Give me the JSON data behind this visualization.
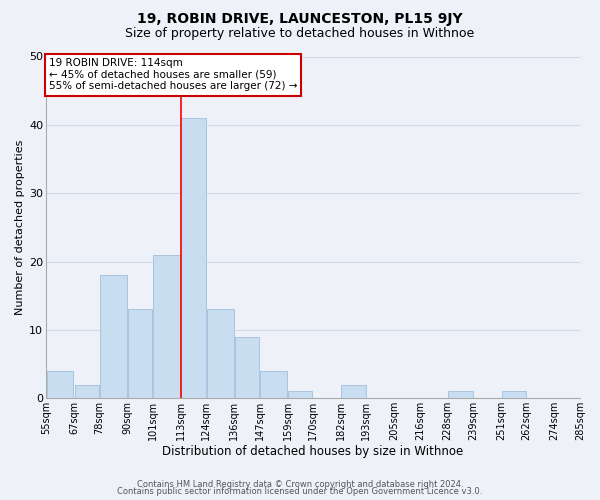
{
  "title": "19, ROBIN DRIVE, LAUNCESTON, PL15 9JY",
  "subtitle": "Size of property relative to detached houses in Withnoe",
  "xlabel": "Distribution of detached houses by size in Withnoe",
  "ylabel": "Number of detached properties",
  "bar_values": [
    4,
    2,
    18,
    13,
    21,
    41,
    13,
    9,
    4,
    1,
    0,
    2,
    0,
    0,
    0,
    1,
    0,
    1,
    0,
    0
  ],
  "bar_left_edges": [
    55,
    67,
    78,
    90,
    101,
    113,
    124,
    136,
    147,
    159,
    170,
    182,
    193,
    205,
    216,
    228,
    239,
    251,
    262,
    274
  ],
  "bar_widths": [
    12,
    11,
    12,
    11,
    12,
    11,
    12,
    11,
    12,
    11,
    12,
    11,
    12,
    11,
    12,
    11,
    12,
    11,
    12,
    11
  ],
  "x_tick_positions": [
    55,
    67,
    78,
    90,
    101,
    113,
    124,
    136,
    147,
    159,
    170,
    182,
    193,
    205,
    216,
    228,
    239,
    251,
    262,
    274,
    285
  ],
  "x_tick_labels": [
    "55sqm",
    "67sqm",
    "78sqm",
    "90sqm",
    "101sqm",
    "113sqm",
    "124sqm",
    "136sqm",
    "147sqm",
    "159sqm",
    "170sqm",
    "182sqm",
    "193sqm",
    "205sqm",
    "216sqm",
    "228sqm",
    "239sqm",
    "251sqm",
    "262sqm",
    "274sqm",
    "285sqm"
  ],
  "ylim": [
    0,
    50
  ],
  "xlim": [
    55,
    285
  ],
  "bar_color": "#c8ddf0",
  "bar_edge_color": "#aac4e0",
  "vline_x": 113,
  "vline_color": "red",
  "vline_linewidth": 1.2,
  "annotation_text": "19 ROBIN DRIVE: 114sqm\n← 45% of detached houses are smaller (59)\n55% of semi-detached houses are larger (72) →",
  "annotation_fontsize": 7.5,
  "grid_color": "#d0d8e8",
  "background_color": "#eef2f8",
  "footer_line1": "Contains HM Land Registry data © Crown copyright and database right 2024.",
  "footer_line2": "Contains public sector information licensed under the Open Government Licence v3.0.",
  "title_fontsize": 10,
  "subtitle_fontsize": 9,
  "xlabel_fontsize": 8.5,
  "ylabel_fontsize": 8,
  "tick_fontsize": 7,
  "ytick_fontsize": 8
}
